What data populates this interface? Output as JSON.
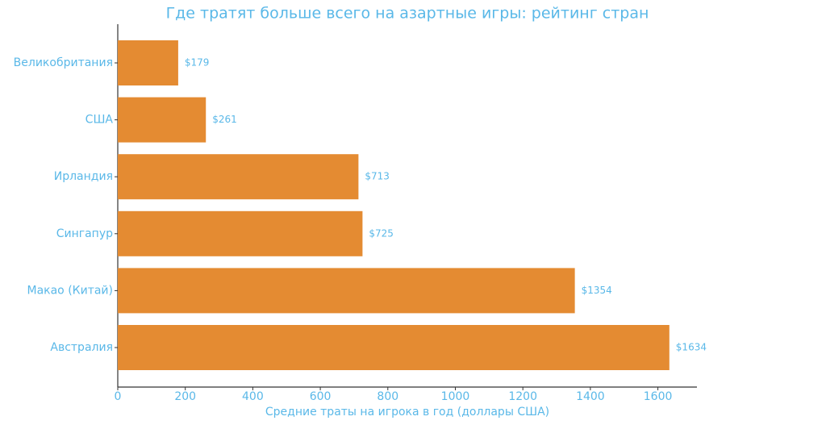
{
  "chart_data": {
    "type": "barh",
    "title": "Где тратят больше всего на азартные игры: рейтинг стран",
    "x_label": "Средние траты на игрока в год (доллары США)",
    "categories": [
      "Великобритания",
      "США",
      "Ирландия",
      "Сингапур",
      "Макао (Китай)",
      "Австралия"
    ],
    "values": [
      179,
      261,
      713,
      725,
      1354,
      1634
    ],
    "value_labels": [
      "$179",
      "$261",
      "$713",
      "$725",
      "$1354",
      "$1634"
    ],
    "color": "#e48b32",
    "xlim": [
      0,
      1715.7
    ],
    "xticks": [
      0,
      200,
      400,
      600,
      800,
      1000,
      1200,
      1400,
      1600
    ],
    "grid": false
  }
}
